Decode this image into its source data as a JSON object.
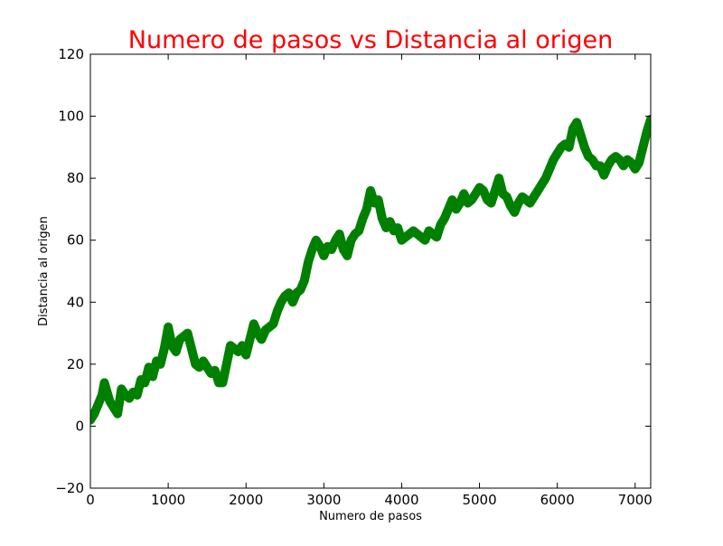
{
  "chart_data": {
    "type": "line",
    "title": "Numero de pasos vs Distancia al origen",
    "xlabel": "Numero de pasos",
    "ylabel": "Distancia al origen",
    "xlim": [
      0,
      7200
    ],
    "ylim": [
      -20,
      120
    ],
    "xticks": [
      0,
      1000,
      2000,
      3000,
      4000,
      5000,
      6000,
      7000
    ],
    "yticks": [
      -20,
      0,
      20,
      40,
      60,
      80,
      100,
      120
    ],
    "xtick_labels": [
      "0",
      "1000",
      "2000",
      "3000",
      "4000",
      "5000",
      "6000",
      "7000"
    ],
    "ytick_labels": [
      "−20",
      "0",
      "20",
      "40",
      "60",
      "80",
      "100",
      "120"
    ],
    "grid": false,
    "colors": {
      "title": "#ff0000",
      "series": "#008000",
      "axes": "#000000"
    },
    "series": [
      {
        "x": [
          0,
          50,
          100,
          150,
          180,
          250,
          300,
          350,
          400,
          450,
          500,
          550,
          600,
          650,
          700,
          750,
          800,
          850,
          900,
          950,
          1000,
          1050,
          1100,
          1150,
          1200,
          1250,
          1300,
          1350,
          1400,
          1450,
          1500,
          1550,
          1600,
          1650,
          1700,
          1750,
          1800,
          1850,
          1900,
          1950,
          2000,
          2050,
          2100,
          2150,
          2200,
          2250,
          2300,
          2350,
          2400,
          2450,
          2500,
          2550,
          2600,
          2650,
          2700,
          2750,
          2800,
          2850,
          2900,
          2950,
          3000,
          3050,
          3100,
          3150,
          3200,
          3250,
          3300,
          3350,
          3400,
          3450,
          3500,
          3550,
          3600,
          3650,
          3700,
          3750,
          3800,
          3850,
          3900,
          3950,
          4000,
          4050,
          4100,
          4150,
          4200,
          4250,
          4300,
          4350,
          4400,
          4450,
          4500,
          4550,
          4600,
          4650,
          4700,
          4750,
          4800,
          4850,
          4900,
          4950,
          5000,
          5050,
          5100,
          5150,
          5200,
          5250,
          5300,
          5350,
          5400,
          5450,
          5500,
          5550,
          5600,
          5650,
          5700,
          5750,
          5800,
          5850,
          5900,
          5950,
          6000,
          6050,
          6100,
          6150,
          6200,
          6250,
          6300,
          6350,
          6400,
          6450,
          6500,
          6550,
          6600,
          6650,
          6700,
          6750,
          6800,
          6850,
          6900,
          6950,
          7000,
          7050,
          7100,
          7150,
          7200
        ],
        "y": [
          2,
          4,
          7,
          10,
          14,
          8,
          6,
          4,
          12,
          10,
          9,
          11,
          10,
          15,
          14,
          19,
          16,
          21,
          20,
          25,
          32,
          26,
          24,
          28,
          29,
          30,
          25,
          20,
          19,
          21,
          19,
          17,
          18,
          14,
          14,
          20,
          26,
          25,
          24,
          26,
          23,
          28,
          33,
          30,
          28,
          31,
          32,
          33,
          37,
          40,
          42,
          43,
          40,
          43,
          44,
          47,
          53,
          57,
          60,
          58,
          55,
          58,
          57,
          60,
          62,
          57,
          55,
          60,
          62,
          63,
          67,
          70,
          76,
          72,
          73,
          67,
          64,
          66,
          63,
          64,
          60,
          61,
          62,
          63,
          62,
          61,
          60,
          63,
          62,
          61,
          65,
          67,
          70,
          73,
          70,
          72,
          75,
          72,
          73,
          75,
          77,
          76,
          73,
          72,
          76,
          80,
          75,
          74,
          71,
          69,
          72,
          74,
          73,
          72,
          74,
          76,
          78,
          80,
          83,
          86,
          88,
          90,
          91,
          90,
          96,
          98,
          94,
          90,
          87,
          86,
          84,
          84,
          81,
          84,
          86,
          87,
          86,
          84,
          86,
          85,
          83,
          85,
          90,
          95,
          99
        ]
      }
    ]
  }
}
